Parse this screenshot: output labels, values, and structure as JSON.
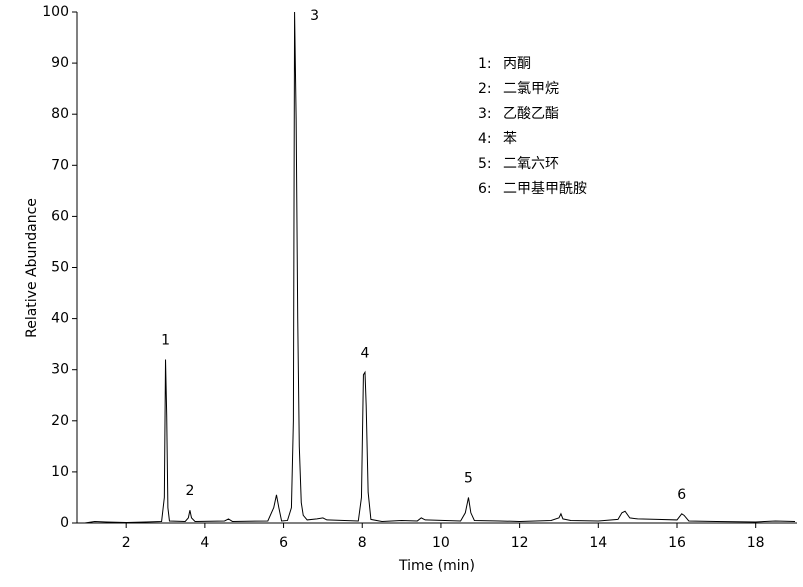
{
  "chart_data": {
    "type": "line",
    "x_label": "Time (min)",
    "y_label": "Relative Abundance",
    "x": [
      0.95,
      1.2,
      1.5,
      2.0,
      2.5,
      2.9,
      2.97,
      3.0,
      3.03,
      3.06,
      3.1,
      3.5,
      3.58,
      3.62,
      3.66,
      3.75,
      4.5,
      4.6,
      4.7,
      5.6,
      5.75,
      5.82,
      5.88,
      5.95,
      6.1,
      6.2,
      6.25,
      6.28,
      6.32,
      6.36,
      6.4,
      6.45,
      6.5,
      6.6,
      6.85,
      7.0,
      7.1,
      7.9,
      7.98,
      8.03,
      8.07,
      8.1,
      8.15,
      8.22,
      8.5,
      9.0,
      9.4,
      9.5,
      9.6,
      10.5,
      10.62,
      10.7,
      10.76,
      10.85,
      11.5,
      12.0,
      12.8,
      13.0,
      13.05,
      13.1,
      13.3,
      14.0,
      14.5,
      14.6,
      14.68,
      14.8,
      15.0,
      15.5,
      16.0,
      16.12,
      16.18,
      16.3,
      17.0,
      18.0,
      18.5,
      19.0
    ],
    "series": [
      {
        "color": "#000000",
        "values": [
          0,
          0.3,
          0.2,
          0.1,
          0.2,
          0.3,
          5,
          32,
          21,
          3,
          0.4,
          0.3,
          1,
          2.5,
          1,
          0.3,
          0.4,
          0.8,
          0.3,
          0.4,
          3,
          5.5,
          3,
          0.4,
          0.5,
          3,
          20,
          100,
          79,
          40,
          15,
          4,
          1.5,
          0.6,
          0.8,
          1,
          0.6,
          0.4,
          5,
          29,
          29.5,
          23,
          6,
          0.7,
          0.3,
          0.5,
          0.4,
          1,
          0.6,
          0.4,
          2,
          5,
          2,
          0.5,
          0.4,
          0.3,
          0.5,
          1,
          1.8,
          0.8,
          0.5,
          0.4,
          0.7,
          2,
          2.3,
          1,
          0.8,
          0.7,
          0.6,
          1.8,
          1.5,
          0.4,
          0.3,
          0.2,
          0.4,
          0.3
        ]
      }
    ],
    "xlim": [
      0.75,
      19.05
    ],
    "xticks": [
      2,
      4,
      6,
      8,
      10,
      12,
      14,
      16,
      18
    ],
    "ylim": [
      0,
      100
    ],
    "yticks": [
      0,
      10,
      20,
      30,
      40,
      50,
      60,
      70,
      80,
      90,
      100
    ],
    "annotations": [
      {
        "text": "1",
        "x": 3.0
      },
      {
        "text": "2",
        "x": 3.62
      },
      {
        "text": "3",
        "x": 6.28
      },
      {
        "text": "4",
        "x": 8.07
      },
      {
        "text": "5",
        "x": 10.7
      },
      {
        "text": "6",
        "x": 16.12
      }
    ],
    "legend_items": [
      {
        "key": "1:",
        "text": "丙酮"
      },
      {
        "key": "2:",
        "text": "二氯甲烷"
      },
      {
        "key": "3:",
        "text": "乙酸乙酯"
      },
      {
        "key": "4:",
        "text": "苯"
      },
      {
        "key": "5:",
        "text": "二氧六环"
      },
      {
        "key": "6:",
        "text": "二甲基甲酰胺"
      }
    ]
  }
}
